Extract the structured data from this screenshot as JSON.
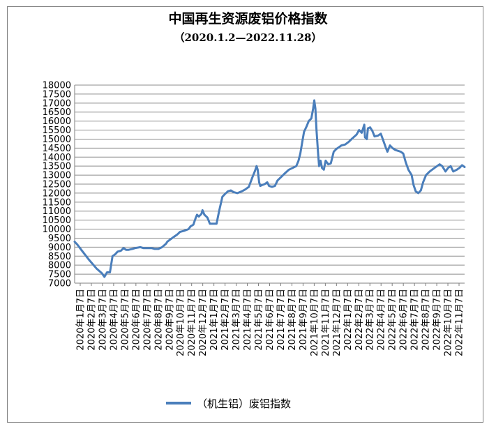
{
  "chart_data": {
    "type": "line",
    "title": "中国再生资源废铝价格指数",
    "subtitle": "（2020.1.2—2022.11.28）",
    "xlabel": "",
    "ylabel": "",
    "ylim": [
      7000,
      18000
    ],
    "y_ticks": [
      7000,
      7500,
      8000,
      8500,
      9000,
      9500,
      10000,
      10500,
      11000,
      11500,
      12000,
      12500,
      13000,
      13500,
      14000,
      14500,
      15000,
      15500,
      16000,
      16500,
      17000,
      17500,
      18000
    ],
    "x_tick_labels": [
      "2020年1月7日",
      "2020年2月7日",
      "2020年3月7日",
      "2020年4月7日",
      "2020年5月7日",
      "2020年6月7日",
      "2020年7月7日",
      "2020年8月7日",
      "2020年9月7日",
      "2020年10月7日",
      "2020年11月7日",
      "2020年12月7日",
      "2021年1月7日",
      "2021年2月7日",
      "2021年3月7日",
      "2021年4月7日",
      "2021年5月7日",
      "2021年6月7日",
      "2021年7月7日",
      "2021年8月7日",
      "2021年9月7日",
      "2021年10月7日",
      "2021年11月7日",
      "2021年12月7日",
      "2022年1月7日",
      "2022年2月7日",
      "2022年3月7日",
      "2022年4月7日",
      "2022年5月7日",
      "2022年6月7日",
      "2022年7月7日",
      "2022年8月7日",
      "2022年9月7日",
      "2022年10月7日",
      "2022年11月7日"
    ],
    "grid": true,
    "legend_position": "bottom",
    "series": [
      {
        "name": "（机生铝）废铝指数",
        "color": "#4a7ebb",
        "points": [
          [
            "2020-01-02",
            9300
          ],
          [
            "2020-01-09",
            9150
          ],
          [
            "2020-01-20",
            8850
          ],
          [
            "2020-02-10",
            8300
          ],
          [
            "2020-03-02",
            7800
          ],
          [
            "2020-03-16",
            7550
          ],
          [
            "2020-03-23",
            7350
          ],
          [
            "2020-03-30",
            7600
          ],
          [
            "2020-04-07",
            7600
          ],
          [
            "2020-04-14",
            8500
          ],
          [
            "2020-04-21",
            8600
          ],
          [
            "2020-04-28",
            8750
          ],
          [
            "2020-05-07",
            8800
          ],
          [
            "2020-05-14",
            8950
          ],
          [
            "2020-05-21",
            8850
          ],
          [
            "2020-05-28",
            8850
          ],
          [
            "2020-06-07",
            8900
          ],
          [
            "2020-06-15",
            8950
          ],
          [
            "2020-06-29",
            9000
          ],
          [
            "2020-07-07",
            8950
          ],
          [
            "2020-07-15",
            8950
          ],
          [
            "2020-07-29",
            8950
          ],
          [
            "2020-08-07",
            8900
          ],
          [
            "2020-08-17",
            8900
          ],
          [
            "2020-08-27",
            9000
          ],
          [
            "2020-09-07",
            9200
          ],
          [
            "2020-09-10",
            9300
          ],
          [
            "2020-09-20",
            9450
          ],
          [
            "2020-09-30",
            9600
          ],
          [
            "2020-10-07",
            9700
          ],
          [
            "2020-10-15",
            9850
          ],
          [
            "2020-10-25",
            9900
          ],
          [
            "2020-11-07",
            10000
          ],
          [
            "2020-11-12",
            10150
          ],
          [
            "2020-11-20",
            10250
          ],
          [
            "2020-11-26",
            10600
          ],
          [
            "2020-11-30",
            10800
          ],
          [
            "2020-12-05",
            10700
          ],
          [
            "2020-12-12",
            10850
          ],
          [
            "2020-12-15",
            11050
          ],
          [
            "2020-12-20",
            10800
          ],
          [
            "2020-12-28",
            10650
          ],
          [
            "2021-01-04",
            10300
          ],
          [
            "2021-01-15",
            10300
          ],
          [
            "2021-01-22",
            10300
          ],
          [
            "2021-01-29",
            11000
          ],
          [
            "2021-02-07",
            11800
          ],
          [
            "2021-02-14",
            11950
          ],
          [
            "2021-02-22",
            12100
          ],
          [
            "2021-03-02",
            12150
          ],
          [
            "2021-03-10",
            12050
          ],
          [
            "2021-03-20",
            12000
          ],
          [
            "2021-04-01",
            12100
          ],
          [
            "2021-04-10",
            12200
          ],
          [
            "2021-04-20",
            12350
          ],
          [
            "2021-04-30",
            12900
          ],
          [
            "2021-05-07",
            13250
          ],
          [
            "2021-05-11",
            13500
          ],
          [
            "2021-05-14",
            13300
          ],
          [
            "2021-05-18",
            12600
          ],
          [
            "2021-05-21",
            12400
          ],
          [
            "2021-05-26",
            12450
          ],
          [
            "2021-06-02",
            12500
          ],
          [
            "2021-06-09",
            12600
          ],
          [
            "2021-06-14",
            12400
          ],
          [
            "2021-06-22",
            12350
          ],
          [
            "2021-06-30",
            12400
          ],
          [
            "2021-07-07",
            12700
          ],
          [
            "2021-07-17",
            12900
          ],
          [
            "2021-07-27",
            13100
          ],
          [
            "2021-08-07",
            13300
          ],
          [
            "2021-08-17",
            13400
          ],
          [
            "2021-08-27",
            13500
          ],
          [
            "2021-09-02",
            13800
          ],
          [
            "2021-09-07",
            14200
          ],
          [
            "2021-09-12",
            14800
          ],
          [
            "2021-09-17",
            15400
          ],
          [
            "2021-09-24",
            15700
          ],
          [
            "2021-09-30",
            16000
          ],
          [
            "2021-10-07",
            16150
          ],
          [
            "2021-10-12",
            16700
          ],
          [
            "2021-10-15",
            17150
          ],
          [
            "2021-10-18",
            16700
          ],
          [
            "2021-10-21",
            15500
          ],
          [
            "2021-10-25",
            14300
          ],
          [
            "2021-10-28",
            13500
          ],
          [
            "2021-11-01",
            13800
          ],
          [
            "2021-11-05",
            13400
          ],
          [
            "2021-11-10",
            13300
          ],
          [
            "2021-11-15",
            13800
          ],
          [
            "2021-11-22",
            13600
          ],
          [
            "2021-11-29",
            13650
          ],
          [
            "2021-12-07",
            14300
          ],
          [
            "2021-12-14",
            14450
          ],
          [
            "2021-12-21",
            14550
          ],
          [
            "2021-12-28",
            14650
          ],
          [
            "2022-01-07",
            14700
          ],
          [
            "2022-01-17",
            14850
          ],
          [
            "2022-01-27",
            15050
          ],
          [
            "2022-02-07",
            15250
          ],
          [
            "2022-02-14",
            15500
          ],
          [
            "2022-02-21",
            15350
          ],
          [
            "2022-02-28",
            15800
          ],
          [
            "2022-03-02",
            15100
          ],
          [
            "2022-03-07",
            15000
          ],
          [
            "2022-03-10",
            15600
          ],
          [
            "2022-03-16",
            15650
          ],
          [
            "2022-03-22",
            15450
          ],
          [
            "2022-03-28",
            15150
          ],
          [
            "2022-04-07",
            15200
          ],
          [
            "2022-04-14",
            15300
          ],
          [
            "2022-04-21",
            14900
          ],
          [
            "2022-04-28",
            14500
          ],
          [
            "2022-05-02",
            14300
          ],
          [
            "2022-05-09",
            14650
          ],
          [
            "2022-05-16",
            14500
          ],
          [
            "2022-05-23",
            14400
          ],
          [
            "2022-06-07",
            14300
          ],
          [
            "2022-06-14",
            14200
          ],
          [
            "2022-06-21",
            13700
          ],
          [
            "2022-06-28",
            13300
          ],
          [
            "2022-07-07",
            13000
          ],
          [
            "2022-07-12",
            12450
          ],
          [
            "2022-07-18",
            12100
          ],
          [
            "2022-07-25",
            12000
          ],
          [
            "2022-08-01",
            12150
          ],
          [
            "2022-08-07",
            12600
          ],
          [
            "2022-08-15",
            13000
          ],
          [
            "2022-08-25",
            13200
          ],
          [
            "2022-09-07",
            13400
          ],
          [
            "2022-09-14",
            13500
          ],
          [
            "2022-09-21",
            13600
          ],
          [
            "2022-09-28",
            13500
          ],
          [
            "2022-10-07",
            13200
          ],
          [
            "2022-10-14",
            13400
          ],
          [
            "2022-10-21",
            13500
          ],
          [
            "2022-10-28",
            13200
          ],
          [
            "2022-11-07",
            13300
          ],
          [
            "2022-11-14",
            13400
          ],
          [
            "2022-11-21",
            13550
          ],
          [
            "2022-11-28",
            13450
          ]
        ]
      }
    ]
  }
}
